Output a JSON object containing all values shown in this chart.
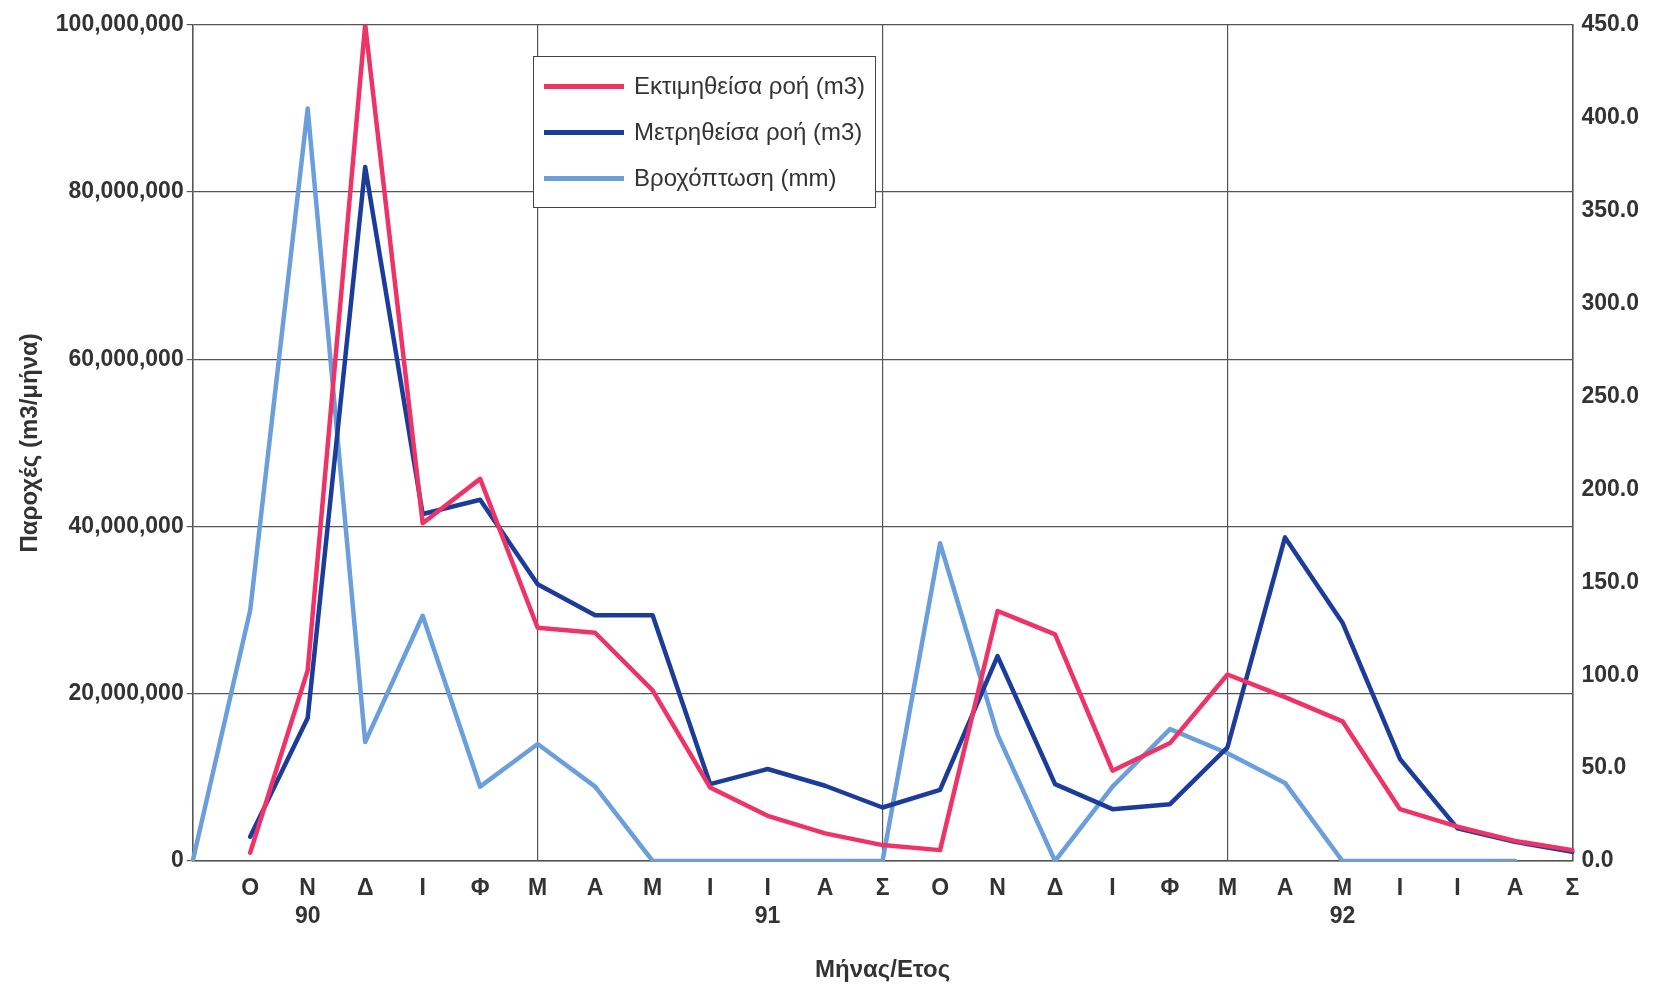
{
  "chart_data": {
    "type": "line",
    "xlabel": "Μήνας/Ετος",
    "ylabel": "Παροχές (m3/μήνα)",
    "categories": [
      null,
      "Ο",
      "Ν\n90",
      "Δ",
      "Ι",
      "Φ",
      "Μ",
      "Α",
      "Μ",
      "Ι",
      "Ι\n91",
      "Α",
      "Σ",
      "Ο",
      "Ν",
      "Δ",
      "Ι",
      "Φ",
      "Μ",
      "Α",
      "Μ\n92",
      "Ι",
      "Ι",
      "Α",
      "Σ"
    ],
    "series": [
      {
        "name": "Εκτιμηθείσα ροή (m3)",
        "color": "#ee3466",
        "values": [
          null,
          1000000,
          22800000,
          100000000,
          40400000,
          45700000,
          27900000,
          27300000,
          20400000,
          8800000,
          5400000,
          3300000,
          1900000,
          1300000,
          29900000,
          27100000,
          10800000,
          14100000,
          22300000,
          19600000,
          16700000,
          6200000,
          4100000,
          2400000,
          1300000
        ]
      },
      {
        "name": "Μετρηθείσα ροή (m3)",
        "color": "#1c3c9c",
        "values": [
          null,
          2900000,
          17100000,
          83000000,
          41500000,
          43200000,
          33100000,
          29400000,
          29400000,
          9200000,
          11000000,
          9000000,
          6400000,
          8500000,
          24500000,
          9200000,
          6200000,
          6800000,
          13600000,
          38700000,
          28500000,
          12200000,
          3900000,
          2300000,
          1100000
        ]
      },
      {
        "name": "Βροχόπτωση (mm)",
        "color": "#6b9fdc",
        "axis": "y2",
        "values": [
          0,
          135,
          405,
          64,
          132,
          40,
          63,
          40,
          0,
          0,
          0,
          0,
          0,
          171,
          68,
          0,
          40,
          71,
          58,
          42,
          0,
          0,
          0,
          0,
          null
        ]
      }
    ],
    "ylim": [
      0,
      100000000
    ],
    "yticks": [
      {
        "value": 0,
        "label": "0"
      },
      {
        "value": 20000000,
        "label": "20,000,000"
      },
      {
        "value": 40000000,
        "label": "40,000,000"
      },
      {
        "value": 60000000,
        "label": "60,000,000"
      },
      {
        "value": 80000000,
        "label": "80,000,000"
      },
      {
        "value": 100000000,
        "label": "100,000,000"
      }
    ],
    "y2lim": [
      0,
      450
    ],
    "y2ticks": [
      {
        "value": 0,
        "label": "0.0"
      },
      {
        "value": 50,
        "label": "50.0"
      },
      {
        "value": 100,
        "label": "100.0"
      },
      {
        "value": 150,
        "label": "150.0"
      },
      {
        "value": 200,
        "label": "200.0"
      },
      {
        "value": 250,
        "label": "250.0"
      },
      {
        "value": 300,
        "label": "300.0"
      },
      {
        "value": 350,
        "label": "350.0"
      },
      {
        "value": 400,
        "label": "400.0"
      },
      {
        "value": 450,
        "label": "450.0"
      }
    ],
    "grid": true,
    "legend": "top",
    "marker": "none",
    "line_style": "solid"
  }
}
